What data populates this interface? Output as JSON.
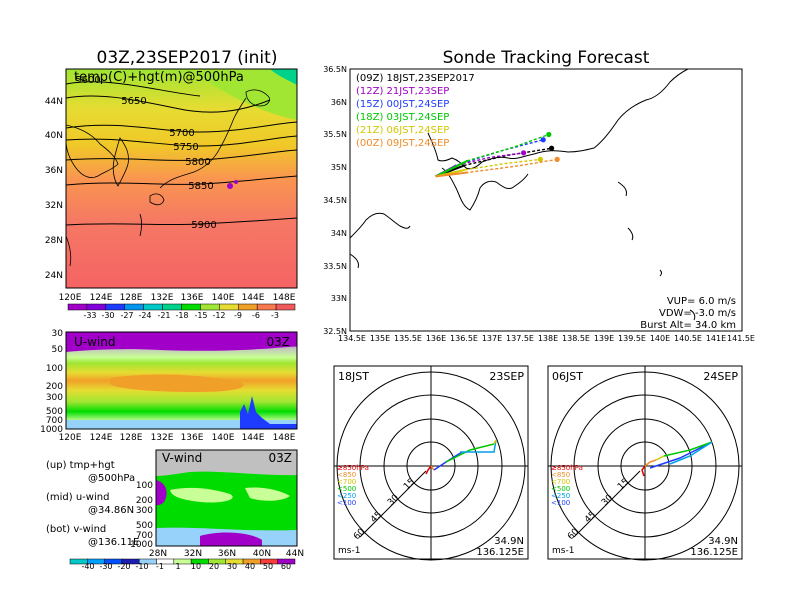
{
  "main": {
    "left_title": "03Z,23SEP2017 (init)",
    "right_title": "Sonde Tracking Forecast"
  },
  "chart_data": [
    {
      "id": "temp500",
      "type": "heatmap",
      "title": "temp(C)+hgt(m)@500hPa",
      "x_ticks": [
        "120E",
        "124E",
        "128E",
        "132E",
        "136E",
        "140E",
        "144E",
        "148E"
      ],
      "y_ticks": [
        "44N",
        "40N",
        "36N",
        "32N",
        "28N",
        "24N"
      ],
      "xlim": [
        120,
        150
      ],
      "ylim": [
        22,
        48
      ],
      "contour_labels": [
        "5600",
        "5650",
        "5700",
        "5750",
        "5800",
        "5850",
        "5900"
      ],
      "colorbar_labels": [
        "-33",
        "-30",
        "-27",
        "-24",
        "-21",
        "-18",
        "-15",
        "-12",
        "-9",
        "-6",
        "-3"
      ],
      "colorbar_colors": [
        "#a000c8",
        "#8200dc",
        "#1e3cff",
        "#0096f0",
        "#00c8c8",
        "#00d28c",
        "#00dc00",
        "#a0e632",
        "#e6dc32",
        "#f0a028",
        "#fa7850",
        "#f05a5a"
      ]
    },
    {
      "id": "uwind",
      "type": "heatmap",
      "title": "U-wind",
      "time_label": "03Z",
      "x_ticks": [
        "120E",
        "124E",
        "128E",
        "132E",
        "136E",
        "140E",
        "144E",
        "148E"
      ],
      "y_ticks": [
        "30",
        "50",
        "100",
        "200",
        "300",
        "500",
        "700",
        "1000"
      ]
    },
    {
      "id": "vwind",
      "type": "heatmap",
      "title": "V-wind",
      "time_label": "03Z",
      "x_ticks": [
        "28N",
        "32N",
        "36N",
        "40N",
        "44N"
      ],
      "y_ticks": [
        "100",
        "200",
        "300",
        "500",
        "700",
        "1000"
      ],
      "colorbar_labels": [
        "-40",
        "-30",
        "-20",
        "-10",
        "-1",
        "1",
        "10",
        "20",
        "30",
        "40",
        "50",
        "60"
      ],
      "colorbar_colors": [
        "#00c8c8",
        "#00a0ff",
        "#0050ff",
        "#1e1eb4",
        "#96d2fa",
        "#ffffff",
        "#c8ff96",
        "#00dc00",
        "#a0e632",
        "#e6dc32",
        "#f0a028",
        "#fa3c3c",
        "#a000c8"
      ]
    },
    {
      "id": "tracking",
      "type": "line",
      "x_ticks": [
        "134.5E",
        "135E",
        "135.5E",
        "136E",
        "136.5E",
        "137E",
        "137.5E",
        "138E",
        "138.5E",
        "139E",
        "139.5E",
        "140E",
        "140.5E",
        "141E",
        "141.5E"
      ],
      "y_ticks": [
        "36.5N",
        "36N",
        "35.5N",
        "35N",
        "34.5N",
        "34N",
        "33.5N",
        "33N",
        "32.5N"
      ],
      "xlim": [
        134.5,
        141.5
      ],
      "ylim": [
        32.5,
        36.5
      ],
      "series": [
        {
          "name": "(09Z)  18JST,23SEP2017",
          "color": "#000000",
          "x": [
            136.03,
            136.55,
            137.3,
            138.1
          ],
          "y": [
            34.86,
            35.03,
            35.18,
            35.29
          ]
        },
        {
          "name": "(12Z)  21JST,23SEP",
          "color": "#a000c8",
          "x": [
            136.03,
            136.4,
            137.0,
            137.6
          ],
          "y": [
            34.86,
            35.03,
            35.15,
            35.22
          ]
        },
        {
          "name": "(15Z)  00JST,24SEP",
          "color": "#1e3cff",
          "x": [
            136.03,
            136.5,
            137.2,
            137.95
          ],
          "y": [
            34.86,
            35.06,
            35.25,
            35.42
          ]
        },
        {
          "name": "(18Z)  03JST,24SEP",
          "color": "#00c800",
          "x": [
            136.03,
            136.6,
            137.4,
            138.05
          ],
          "y": [
            34.86,
            35.1,
            35.3,
            35.5
          ]
        },
        {
          "name": "(21Z)  06JST,24SEP",
          "color": "#d2c800",
          "x": [
            136.03,
            136.55,
            137.3,
            137.9
          ],
          "y": [
            34.86,
            34.96,
            35.06,
            35.12
          ]
        },
        {
          "name": "(00Z)  09JST,24SEP",
          "color": "#f08c28",
          "x": [
            136.03,
            136.6,
            137.5,
            138.2
          ],
          "y": [
            34.86,
            34.92,
            35.02,
            35.12
          ]
        }
      ],
      "info": [
        "VUP=  6.0  m/s",
        "VDW= -3.0  m/s",
        "Burst Alt=  34.0  km"
      ]
    },
    {
      "id": "hodo18",
      "type": "line",
      "left_label": "18JST",
      "right_label": "23SEP",
      "ring_labels": [
        "15",
        "30",
        "45",
        "60"
      ],
      "unit": "ms-1",
      "legend": [
        "≥850hPa",
        "<850",
        "<700",
        "<500",
        "<250",
        "<100"
      ],
      "loc": [
        "34.9N",
        "136.125E"
      ]
    },
    {
      "id": "hodo06",
      "type": "line",
      "left_label": "06JST",
      "right_label": "24SEP",
      "ring_labels": [
        "15",
        "30",
        "45",
        "60"
      ],
      "unit": "ms-1",
      "legend": [
        "≥850hPa",
        "<850",
        "<700",
        "<500",
        "<250",
        "<100"
      ],
      "loc": [
        "34.9N",
        "136.125E"
      ]
    }
  ],
  "notes": {
    "up_1": "(up)  tmp+hgt",
    "up_2": "@500hPa",
    "mid_1": "(mid)  u-wind",
    "mid_2": "@34.86N",
    "bot_1": "(bot)  v-wind",
    "bot_2": "@136.11E"
  },
  "legend_colors": [
    "#e60000",
    "#f08c28",
    "#d2c800",
    "#00c800",
    "#00a0e6",
    "#1e3cff"
  ]
}
